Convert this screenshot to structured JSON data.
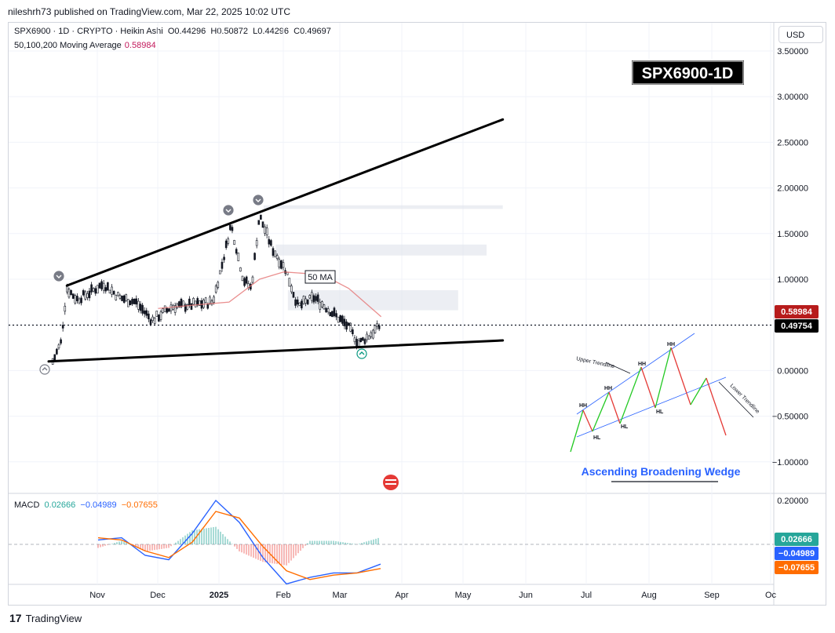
{
  "publisher": "nileshrh73 published on TradingView.com, Mar 22, 2025 10:02 UTC",
  "legend": {
    "symbol": "SPX6900 · 1D · CRYPTO · Heikin Ashi",
    "open_label": "O",
    "open": "0.44296",
    "high_label": "H",
    "high": "0.50872",
    "low_label": "L",
    "low": "0.44296",
    "close_label": "C",
    "close": "0.49697",
    "ma_label": "50,100,200 Moving Average",
    "ma_value": "0.58984"
  },
  "currency_button": "USD",
  "ticker_badge": "SPX6900-1D",
  "ma_annotation": "50 MA",
  "price_tags": {
    "ma": "0.58984",
    "last": "0.49754"
  },
  "macd_legend": {
    "label": "MACD",
    "macd": "0.02666",
    "signal": "−0.04989",
    "hist": "−0.07655"
  },
  "macd_tags": {
    "macd": "0.02666",
    "signal": "−0.04989",
    "hist": "−0.07655"
  },
  "inset": {
    "title": "Ascending Broadening Wedge",
    "upper_label": "Upper Trendline",
    "lower_label": "Lower Trendline",
    "labels": [
      "HH",
      "HH",
      "HH",
      "HH",
      "HH",
      "HL",
      "HL",
      "HL"
    ]
  },
  "footer": "TradingView",
  "colors": {
    "ma": "#e57373",
    "macd": "#2962ff",
    "signal": "#ff6d00",
    "hist_pos": "#26a69a",
    "hist_neg": "#ef5350",
    "badge_bg": "#000000",
    "inset_title": "#2962ff"
  },
  "chart_data": [
    {
      "type": "candlestick",
      "title": "SPX6900 · 1D · CRYPTO · Heikin Ashi",
      "y_ticks": [
        "3.50000",
        "3.00000",
        "2.50000",
        "2.00000",
        "1.50000",
        "1.00000",
        "0.50000",
        "0.00000",
        "−0.50000",
        "−1.00000"
      ],
      "y_tick_values": [
        3.5,
        3.0,
        2.5,
        2.0,
        1.5,
        1.0,
        0.5,
        0.0,
        -0.5,
        -1.0
      ],
      "x_ticks": [
        "Nov",
        "Dec",
        "2025",
        "Feb",
        "Mar",
        "Apr",
        "May",
        "Jun",
        "Jul",
        "Aug",
        "Sep",
        "Oc"
      ],
      "ylim": [
        -1.0,
        3.5
      ],
      "price_path": [
        {
          "x": "2024-10-10",
          "y": 0.1
        },
        {
          "x": "2024-10-14",
          "y": 0.3
        },
        {
          "x": "2024-10-17",
          "y": 0.9
        },
        {
          "x": "2024-10-22",
          "y": 0.78
        },
        {
          "x": "2024-10-28",
          "y": 0.85
        },
        {
          "x": "2024-11-04",
          "y": 0.95
        },
        {
          "x": "2024-11-12",
          "y": 0.8
        },
        {
          "x": "2024-11-20",
          "y": 0.75
        },
        {
          "x": "2024-11-28",
          "y": 0.55
        },
        {
          "x": "2024-12-08",
          "y": 0.7
        },
        {
          "x": "2024-12-18",
          "y": 0.72
        },
        {
          "x": "2024-12-28",
          "y": 0.75
        },
        {
          "x": "2025-01-02",
          "y": 1.2
        },
        {
          "x": "2025-01-06",
          "y": 1.6
        },
        {
          "x": "2025-01-12",
          "y": 1.0
        },
        {
          "x": "2025-01-16",
          "y": 0.9
        },
        {
          "x": "2025-01-20",
          "y": 1.7
        },
        {
          "x": "2025-01-26",
          "y": 1.35
        },
        {
          "x": "2025-02-02",
          "y": 1.1
        },
        {
          "x": "2025-02-08",
          "y": 0.7
        },
        {
          "x": "2025-02-16",
          "y": 0.8
        },
        {
          "x": "2025-02-24",
          "y": 0.65
        },
        {
          "x": "2025-03-04",
          "y": 0.5
        },
        {
          "x": "2025-03-10",
          "y": 0.3
        },
        {
          "x": "2025-03-15",
          "y": 0.38
        },
        {
          "x": "2025-03-21",
          "y": 0.5
        }
      ],
      "moving_average_50": [
        {
          "x": "2024-12-01",
          "y": 0.68
        },
        {
          "x": "2024-12-20",
          "y": 0.72
        },
        {
          "x": "2025-01-05",
          "y": 0.75
        },
        {
          "x": "2025-01-20",
          "y": 1.0
        },
        {
          "x": "2025-02-01",
          "y": 1.08
        },
        {
          "x": "2025-02-20",
          "y": 1.05
        },
        {
          "x": "2025-03-05",
          "y": 0.9
        },
        {
          "x": "2025-03-21",
          "y": 0.59
        }
      ],
      "upper_trendline": [
        {
          "x": "2024-10-17",
          "y": 0.93
        },
        {
          "x": "2025-05-20",
          "y": 2.75
        }
      ],
      "lower_trendline": [
        {
          "x": "2024-10-08",
          "y": 0.1
        },
        {
          "x": "2025-05-20",
          "y": 0.33
        }
      ],
      "resistance_zones": [
        {
          "from": "2025-01-22",
          "to": "2025-05-20",
          "y_low": 1.77,
          "y_high": 1.81
        },
        {
          "from": "2025-01-28",
          "to": "2025-05-12",
          "y_low": 1.26,
          "y_high": 1.38
        },
        {
          "from": "2025-02-03",
          "to": "2025-04-28",
          "y_low": 0.66,
          "y_high": 0.88
        }
      ],
      "last_price": 0.49754,
      "ma_value": 0.58984
    },
    {
      "type": "line",
      "title": "MACD",
      "y_ticks": [
        "0.20000"
      ],
      "series": [
        {
          "name": "MACD",
          "values": [
            0.02,
            0.03,
            -0.05,
            -0.07,
            0.05,
            0.2,
            0.1,
            -0.06,
            -0.18,
            -0.15,
            -0.13,
            -0.13,
            -0.09
          ]
        },
        {
          "name": "Signal",
          "values": [
            0.03,
            0.02,
            -0.03,
            -0.06,
            0.01,
            0.15,
            0.12,
            -0.01,
            -0.12,
            -0.16,
            -0.14,
            -0.13,
            -0.11
          ]
        }
      ]
    }
  ]
}
